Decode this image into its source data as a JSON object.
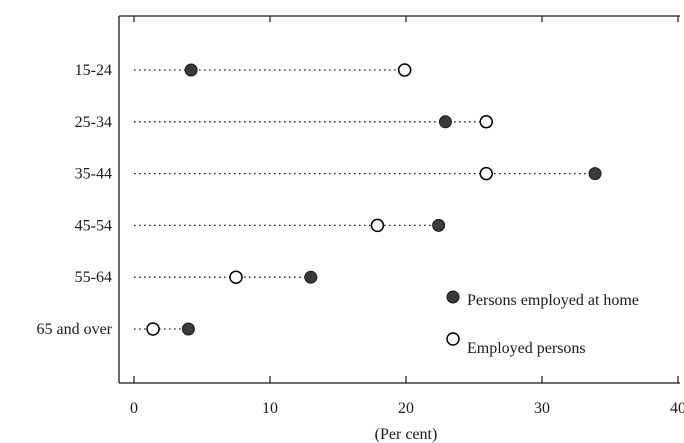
{
  "chart_data": {
    "type": "scatter",
    "title": "",
    "xlabel": "(Per cent)",
    "ylabel": "",
    "xlim": [
      0,
      40
    ],
    "xticks": [
      "0",
      "10",
      "20",
      "30",
      "40"
    ],
    "categories": [
      "15-24",
      "25-34",
      "35-44",
      "45-54",
      "55-64",
      "65 and over"
    ],
    "series": [
      {
        "name": "Persons employed at home",
        "marker": "filled-circle",
        "color": "#3a3a3a",
        "values": [
          4.2,
          22.9,
          33.9,
          22.4,
          13.0,
          4.0
        ]
      },
      {
        "name": "Employed persons",
        "marker": "open-circle",
        "color": "#000000",
        "values": [
          19.9,
          25.9,
          25.9,
          17.9,
          7.5,
          1.4
        ]
      }
    ],
    "legend_position": "bottom-right",
    "grid": false
  }
}
